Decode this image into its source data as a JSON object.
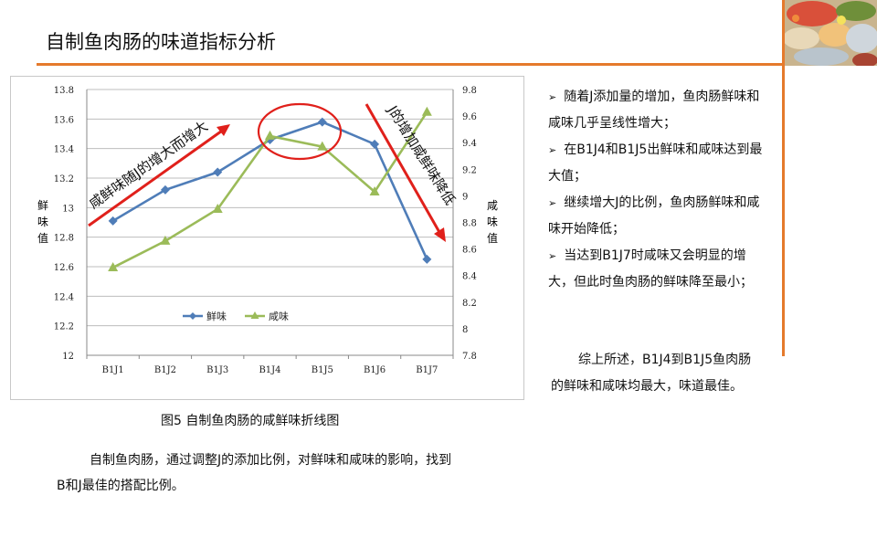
{
  "slide": {
    "title": "自制鱼肉肠的味道指标分析",
    "caption": "图5 自制鱼肉肠的咸鲜味折线图",
    "paragraph": "自制鱼肉肠，通过调整J的添加比例，对鲜味和咸味的影响，找到B和J最佳的搭配比例。",
    "bullet_marker": "➢",
    "bullets": [
      "随着J添加量的增加，鱼肉肠鲜味和咸味几乎呈线性增大；",
      "在B1J4和B1J5出鲜味和咸味达到最大值；",
      "继续增大J的比例，鱼肉肠鲜味和咸味开始降低；",
      "当达到B1J7时咸味又会明显的增大，但此时鱼肉肠的鲜味降至最小；"
    ],
    "summary": "综上所述，B1J4到B1J5鱼肉肠的鲜味和咸味均最大，味道最佳。"
  },
  "colors": {
    "accent": "#E57A2C",
    "series_fresh": "#4F7DB8",
    "series_salty": "#9BBB59",
    "annotation": "#E0201B"
  },
  "chart_data": {
    "type": "line",
    "categories": [
      "B1J1",
      "B1J2",
      "B1J3",
      "B1J4",
      "B1J5",
      "B1J6",
      "B1J7"
    ],
    "series": [
      {
        "name": "鲜味",
        "axis": "left",
        "marker": "diamond",
        "values": [
          12.91,
          13.12,
          13.24,
          13.46,
          13.58,
          13.43,
          12.65
        ]
      },
      {
        "name": "咸味",
        "axis": "right",
        "marker": "triangle",
        "values": [
          8.46,
          8.66,
          8.9,
          9.45,
          9.37,
          9.03,
          9.63
        ]
      }
    ],
    "y_left": {
      "label": "鲜味值",
      "range": [
        12,
        13.8
      ],
      "ticks": [
        "12",
        "12.2",
        "12.4",
        "12.6",
        "12.8",
        "13",
        "13.2",
        "13.4",
        "13.6",
        "13.8"
      ]
    },
    "y_right": {
      "label": "咸味值",
      "range": [
        7.8,
        9.8
      ],
      "ticks": [
        "7.8",
        "8",
        "8.2",
        "8.4",
        "8.6",
        "8.8",
        "9",
        "9.2",
        "9.4",
        "9.6",
        "9.8"
      ]
    },
    "grid": true,
    "legend": "bottom-left inside plot",
    "annotations": [
      {
        "text": "咸鲜味随J的增大而增大"
      },
      {
        "text": "J的增加咸鲜味降低"
      }
    ]
  }
}
